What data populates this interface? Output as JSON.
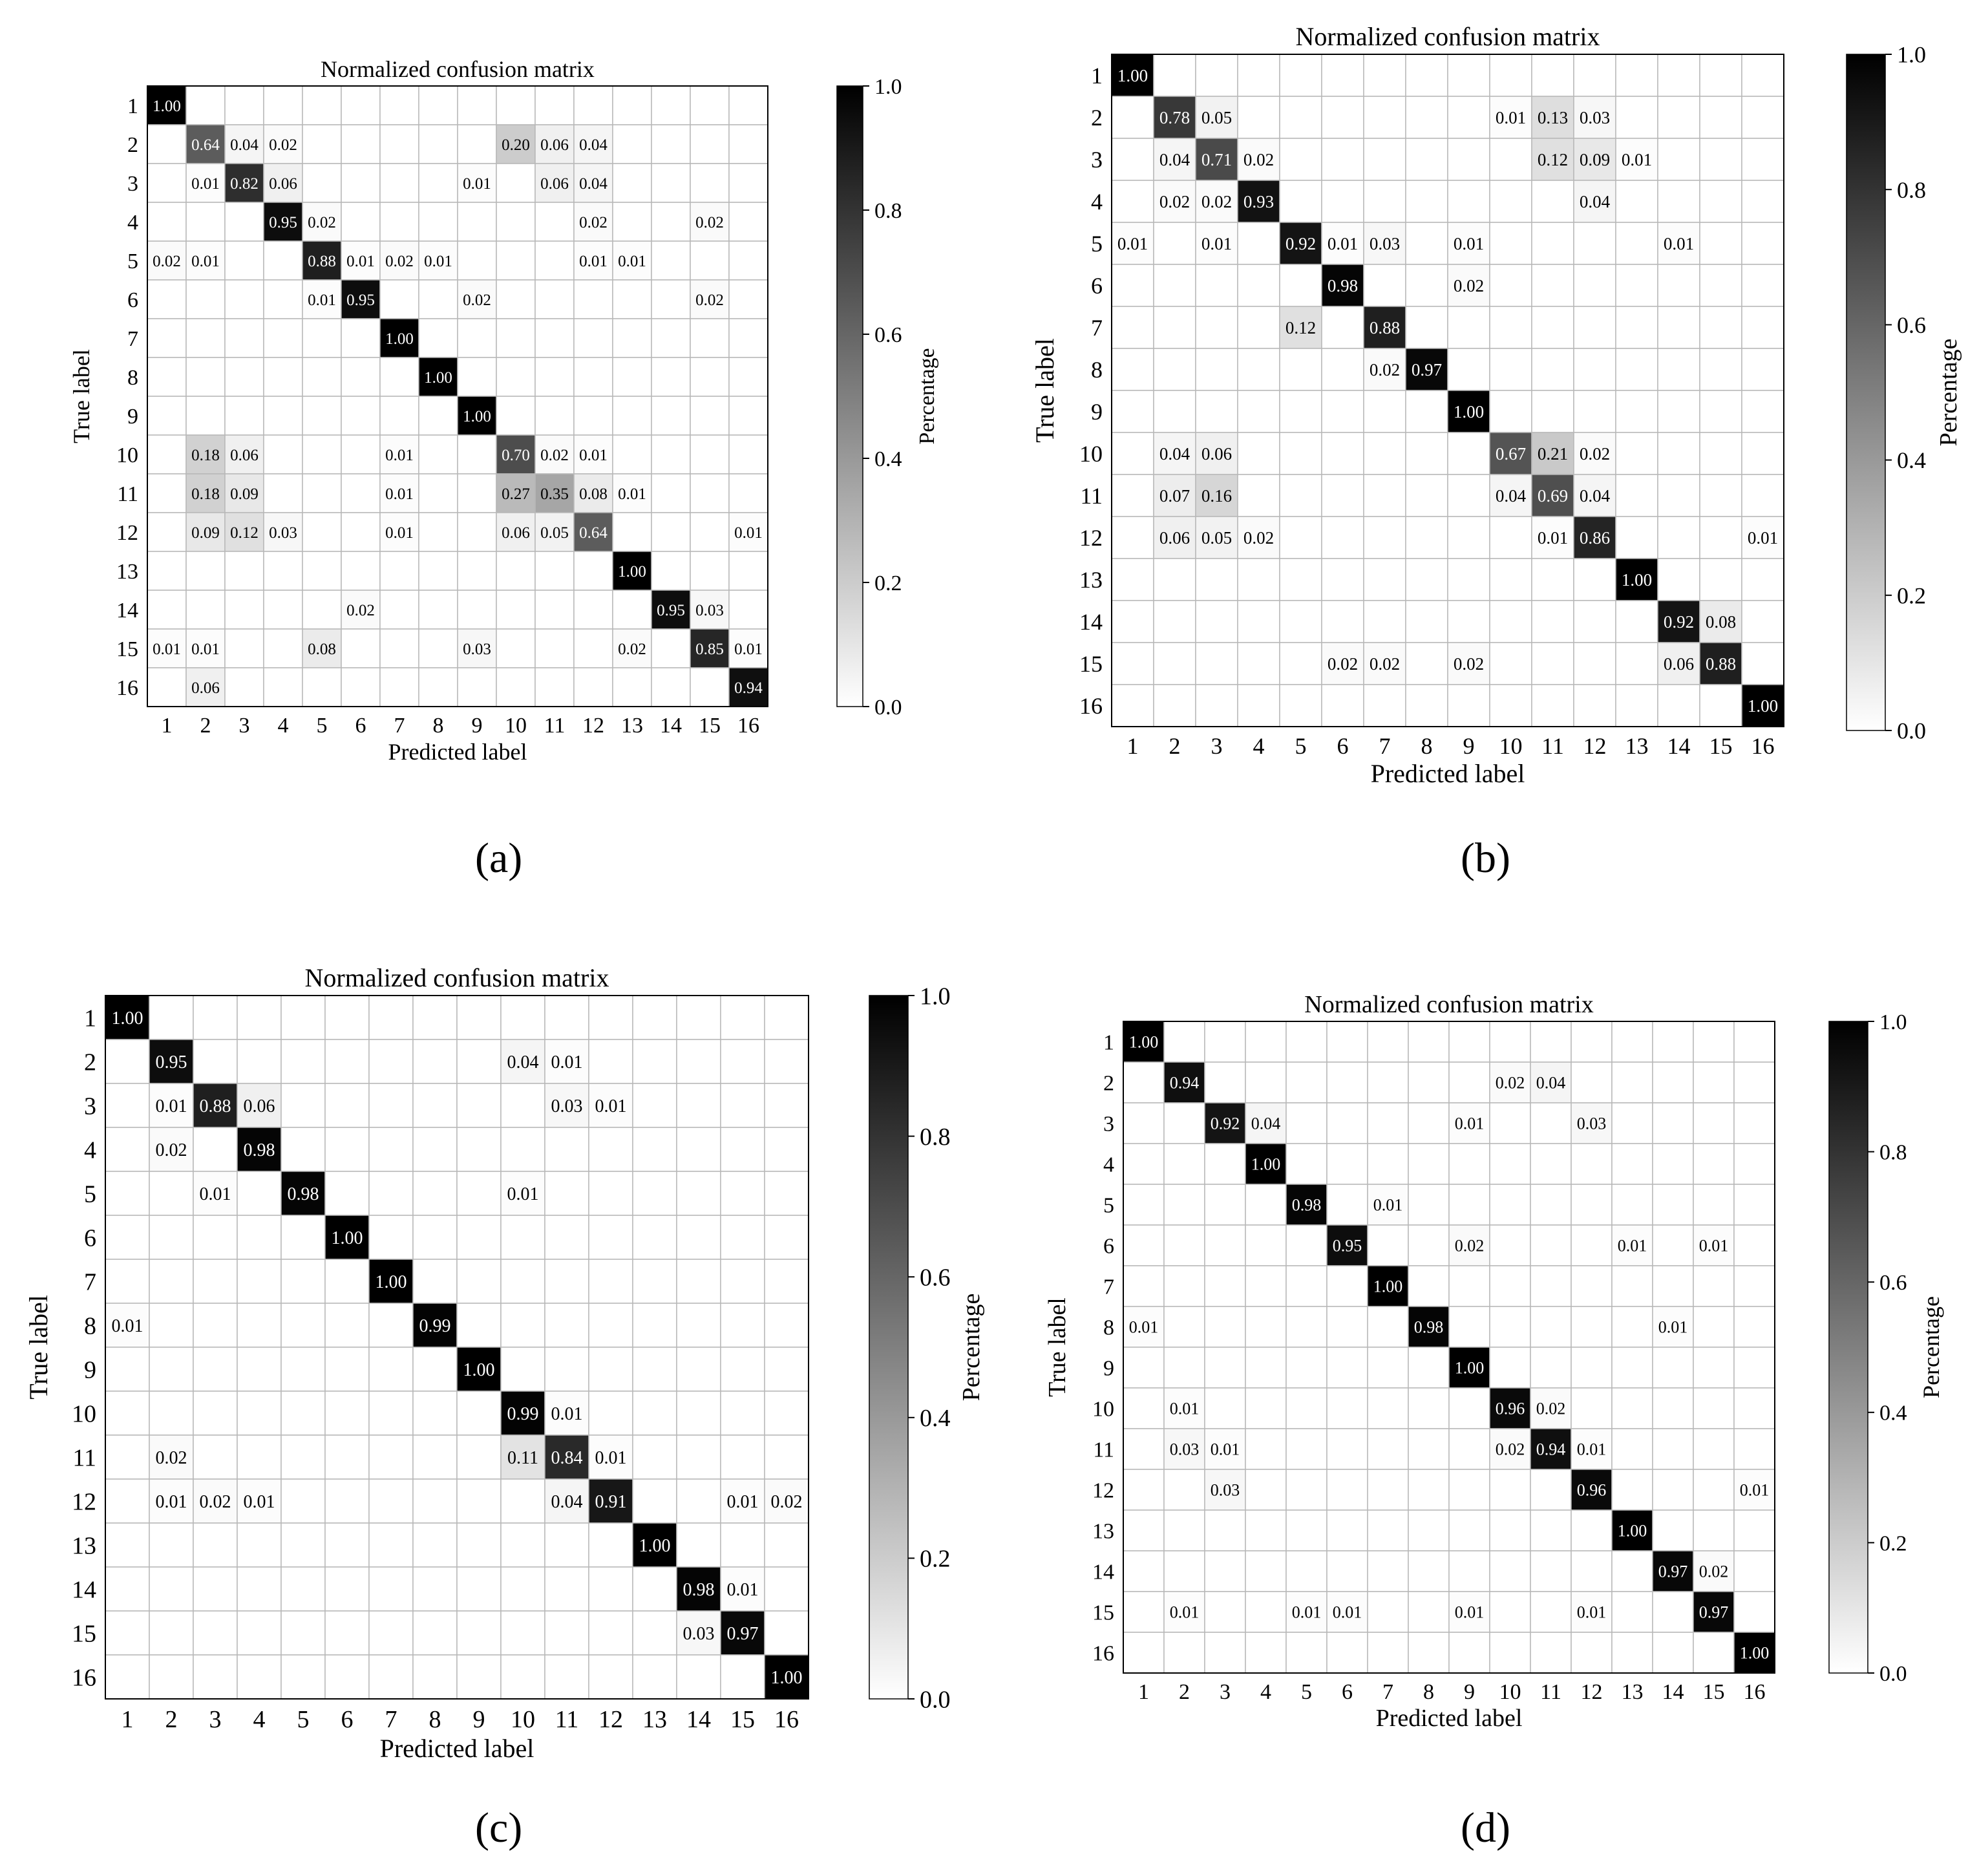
{
  "chart_data": [
    {
      "type": "heatmap",
      "panel": "(a)",
      "title": "Normalized confusion matrix",
      "xlabel": "Predicted label",
      "ylabel": "True label",
      "x_ticks": [
        "1",
        "2",
        "3",
        "4",
        "5",
        "6",
        "7",
        "8",
        "9",
        "10",
        "11",
        "12",
        "13",
        "14",
        "15",
        "16"
      ],
      "y_ticks": [
        "1",
        "2",
        "3",
        "4",
        "5",
        "6",
        "7",
        "8",
        "9",
        "10",
        "11",
        "12",
        "13",
        "14",
        "15",
        "16"
      ],
      "colorbar": {
        "label": "Percentage",
        "ticks": [
          "0.0",
          "0.2",
          "0.4",
          "0.6",
          "0.8",
          "1.0"
        ],
        "range": [
          0,
          1
        ]
      },
      "cmap": "white-to-black",
      "matrix": [
        [
          1.0,
          0,
          0,
          0,
          0,
          0,
          0,
          0,
          0,
          0,
          0,
          0,
          0,
          0,
          0,
          0
        ],
        [
          0,
          0.64,
          0.04,
          0.02,
          0,
          0,
          0,
          0,
          0,
          0.2,
          0.06,
          0.04,
          0,
          0,
          0,
          0
        ],
        [
          0,
          0.01,
          0.82,
          0.06,
          0,
          0,
          0,
          0,
          0.01,
          0,
          0.06,
          0.04,
          0,
          0,
          0,
          0
        ],
        [
          0,
          0,
          0,
          0.95,
          0.02,
          0,
          0,
          0,
          0,
          0,
          0,
          0.02,
          0,
          0,
          0.02,
          0
        ],
        [
          0.02,
          0.01,
          0,
          0,
          0.88,
          0.01,
          0.02,
          0.01,
          0,
          0,
          0,
          0.01,
          0.01,
          0,
          0,
          0
        ],
        [
          0,
          0,
          0,
          0,
          0.01,
          0.95,
          0,
          0,
          0.02,
          0,
          0,
          0,
          0,
          0,
          0.02,
          0
        ],
        [
          0,
          0,
          0,
          0,
          0,
          0,
          1.0,
          0,
          0,
          0,
          0,
          0,
          0,
          0,
          0,
          0
        ],
        [
          0,
          0,
          0,
          0,
          0,
          0,
          0,
          1.0,
          0,
          0,
          0,
          0,
          0,
          0,
          0,
          0
        ],
        [
          0,
          0,
          0,
          0,
          0,
          0,
          0,
          0,
          1.0,
          0,
          0,
          0,
          0,
          0,
          0,
          0
        ],
        [
          0,
          0.18,
          0.06,
          0,
          0,
          0,
          0.01,
          0,
          0,
          0.7,
          0.02,
          0.01,
          0,
          0,
          0,
          0
        ],
        [
          0,
          0.18,
          0.09,
          0,
          0,
          0,
          0.01,
          0,
          0,
          0.27,
          0.35,
          0.08,
          0.01,
          0,
          0,
          0
        ],
        [
          0,
          0.09,
          0.12,
          0.03,
          0,
          0,
          0.01,
          0,
          0,
          0.06,
          0.05,
          0.64,
          0,
          0,
          0,
          0.01
        ],
        [
          0,
          0,
          0,
          0,
          0,
          0,
          0,
          0,
          0,
          0,
          0,
          0,
          1.0,
          0,
          0,
          0
        ],
        [
          0,
          0,
          0,
          0,
          0,
          0.02,
          0,
          0,
          0,
          0,
          0,
          0,
          0,
          0.95,
          0.03,
          0
        ],
        [
          0.01,
          0.01,
          0,
          0,
          0.08,
          0,
          0,
          0,
          0.03,
          0,
          0,
          0,
          0.02,
          0,
          0.85,
          0.01
        ],
        [
          0,
          0.06,
          0,
          0,
          0,
          0,
          0,
          0,
          0,
          0,
          0,
          0,
          0,
          0,
          0,
          0.94
        ]
      ]
    },
    {
      "type": "heatmap",
      "panel": "(b)",
      "title": "Normalized confusion matrix",
      "xlabel": "Predicted label",
      "ylabel": "True label",
      "x_ticks": [
        "1",
        "2",
        "3",
        "4",
        "5",
        "6",
        "7",
        "8",
        "9",
        "10",
        "11",
        "12",
        "13",
        "14",
        "15",
        "16"
      ],
      "y_ticks": [
        "1",
        "2",
        "3",
        "4",
        "5",
        "6",
        "7",
        "8",
        "9",
        "10",
        "11",
        "12",
        "13",
        "14",
        "15",
        "16"
      ],
      "colorbar": {
        "label": "Percentage",
        "ticks": [
          "0.0",
          "0.2",
          "0.4",
          "0.6",
          "0.8",
          "1.0"
        ],
        "range": [
          0,
          1
        ]
      },
      "cmap": "white-to-black",
      "matrix": [
        [
          1.0,
          0,
          0,
          0,
          0,
          0,
          0,
          0,
          0,
          0,
          0,
          0,
          0,
          0,
          0,
          0
        ],
        [
          0,
          0.78,
          0.05,
          0,
          0,
          0,
          0,
          0,
          0,
          0.01,
          0.13,
          0.03,
          0,
          0,
          0,
          0
        ],
        [
          0,
          0.04,
          0.71,
          0.02,
          0,
          0,
          0,
          0,
          0,
          0,
          0.12,
          0.09,
          0.01,
          0,
          0,
          0
        ],
        [
          0,
          0.02,
          0.02,
          0.93,
          0,
          0,
          0,
          0,
          0,
          0,
          0,
          0.04,
          0,
          0,
          0,
          0
        ],
        [
          0.01,
          0,
          0.01,
          0,
          0.92,
          0.01,
          0.03,
          0,
          0.01,
          0,
          0,
          0,
          0,
          0.01,
          0,
          0
        ],
        [
          0,
          0,
          0,
          0,
          0,
          0.98,
          0,
          0,
          0.02,
          0,
          0,
          0,
          0,
          0,
          0,
          0
        ],
        [
          0,
          0,
          0,
          0,
          0.12,
          0,
          0.88,
          0,
          0,
          0,
          0,
          0,
          0,
          0,
          0,
          0
        ],
        [
          0,
          0,
          0,
          0,
          0,
          0,
          0.02,
          0.97,
          0,
          0,
          0,
          0,
          0,
          0,
          0,
          0
        ],
        [
          0,
          0,
          0,
          0,
          0,
          0,
          0,
          0,
          1.0,
          0,
          0,
          0,
          0,
          0,
          0,
          0
        ],
        [
          0,
          0.04,
          0.06,
          0,
          0,
          0,
          0,
          0,
          0,
          0.67,
          0.21,
          0.02,
          0,
          0,
          0,
          0
        ],
        [
          0,
          0.07,
          0.16,
          0,
          0,
          0,
          0,
          0,
          0,
          0.04,
          0.69,
          0.04,
          0,
          0,
          0,
          0
        ],
        [
          0,
          0.06,
          0.05,
          0.02,
          0,
          0,
          0,
          0,
          0,
          0,
          0.01,
          0.86,
          0,
          0,
          0,
          0.01
        ],
        [
          0,
          0,
          0,
          0,
          0,
          0,
          0,
          0,
          0,
          0,
          0,
          0,
          1.0,
          0,
          0,
          0
        ],
        [
          0,
          0,
          0,
          0,
          0,
          0,
          0,
          0,
          0,
          0,
          0,
          0,
          0,
          0.92,
          0.08,
          0
        ],
        [
          0,
          0,
          0,
          0,
          0,
          0.02,
          0.02,
          0,
          0.02,
          0,
          0,
          0,
          0,
          0.06,
          0.88,
          0
        ],
        [
          0,
          0,
          0,
          0,
          0,
          0,
          0,
          0,
          0,
          0,
          0,
          0,
          0,
          0,
          0,
          1.0
        ]
      ]
    },
    {
      "type": "heatmap",
      "panel": "(c)",
      "title": "Normalized confusion matrix",
      "xlabel": "Predicted label",
      "ylabel": "True label",
      "x_ticks": [
        "1",
        "2",
        "3",
        "4",
        "5",
        "6",
        "7",
        "8",
        "9",
        "10",
        "11",
        "12",
        "13",
        "14",
        "15",
        "16"
      ],
      "y_ticks": [
        "1",
        "2",
        "3",
        "4",
        "5",
        "6",
        "7",
        "8",
        "9",
        "10",
        "11",
        "12",
        "13",
        "14",
        "15",
        "16"
      ],
      "colorbar": {
        "label": "Percentage",
        "ticks": [
          "0.0",
          "0.2",
          "0.4",
          "0.6",
          "0.8",
          "1.0"
        ],
        "range": [
          0,
          1
        ]
      },
      "cmap": "white-to-black",
      "matrix": [
        [
          1.0,
          0,
          0,
          0,
          0,
          0,
          0,
          0,
          0,
          0,
          0,
          0,
          0,
          0,
          0,
          0
        ],
        [
          0,
          0.95,
          0,
          0,
          0,
          0,
          0,
          0,
          0,
          0.04,
          0.01,
          0,
          0,
          0,
          0,
          0
        ],
        [
          0,
          0.01,
          0.88,
          0.06,
          0,
          0,
          0,
          0,
          0,
          0,
          0.03,
          0.01,
          0,
          0,
          0,
          0
        ],
        [
          0,
          0.02,
          0,
          0.98,
          0,
          0,
          0,
          0,
          0,
          0,
          0,
          0,
          0,
          0,
          0,
          0
        ],
        [
          0,
          0,
          0.01,
          0,
          0.98,
          0,
          0,
          0,
          0,
          0.01,
          0,
          0,
          0,
          0,
          0,
          0
        ],
        [
          0,
          0,
          0,
          0,
          0,
          1.0,
          0,
          0,
          0,
          0,
          0,
          0,
          0,
          0,
          0,
          0
        ],
        [
          0,
          0,
          0,
          0,
          0,
          0,
          1.0,
          0,
          0,
          0,
          0,
          0,
          0,
          0,
          0,
          0
        ],
        [
          0.01,
          0,
          0,
          0,
          0,
          0,
          0,
          0.99,
          0,
          0,
          0,
          0,
          0,
          0,
          0,
          0
        ],
        [
          0,
          0,
          0,
          0,
          0,
          0,
          0,
          0,
          1.0,
          0,
          0,
          0,
          0,
          0,
          0,
          0
        ],
        [
          0,
          0,
          0,
          0,
          0,
          0,
          0,
          0,
          0,
          0.99,
          0.01,
          0,
          0,
          0,
          0,
          0
        ],
        [
          0,
          0.02,
          0,
          0,
          0,
          0,
          0,
          0,
          0,
          0.11,
          0.84,
          0.01,
          0,
          0,
          0,
          0
        ],
        [
          0,
          0.01,
          0.02,
          0.01,
          0,
          0,
          0,
          0,
          0,
          0,
          0.04,
          0.91,
          0,
          0,
          0.01,
          0.02
        ],
        [
          0,
          0,
          0,
          0,
          0,
          0,
          0,
          0,
          0,
          0,
          0,
          0,
          1.0,
          0,
          0,
          0
        ],
        [
          0,
          0,
          0,
          0,
          0,
          0,
          0,
          0,
          0,
          0,
          0,
          0,
          0,
          0.98,
          0.01,
          0
        ],
        [
          0,
          0,
          0,
          0,
          0,
          0,
          0,
          0,
          0,
          0,
          0,
          0,
          0,
          0.03,
          0.97,
          0
        ],
        [
          0,
          0,
          0,
          0,
          0,
          0,
          0,
          0,
          0,
          0,
          0,
          0,
          0,
          0,
          0,
          1.0
        ]
      ]
    },
    {
      "type": "heatmap",
      "panel": "(d)",
      "title": "Normalized confusion matrix",
      "xlabel": "Predicted label",
      "ylabel": "True label",
      "x_ticks": [
        "1",
        "2",
        "3",
        "4",
        "5",
        "6",
        "7",
        "8",
        "9",
        "10",
        "11",
        "12",
        "13",
        "14",
        "15",
        "16"
      ],
      "y_ticks": [
        "1",
        "2",
        "3",
        "4",
        "5",
        "6",
        "7",
        "8",
        "9",
        "10",
        "11",
        "12",
        "13",
        "14",
        "15",
        "16"
      ],
      "colorbar": {
        "label": "Percentage",
        "ticks": [
          "0.0",
          "0.2",
          "0.4",
          "0.6",
          "0.8",
          "1.0"
        ],
        "range": [
          0,
          1
        ]
      },
      "cmap": "white-to-black",
      "matrix": [
        [
          1.0,
          0,
          0,
          0,
          0,
          0,
          0,
          0,
          0,
          0,
          0,
          0,
          0,
          0,
          0,
          0
        ],
        [
          0,
          0.94,
          0,
          0,
          0,
          0,
          0,
          0,
          0,
          0.02,
          0.04,
          0,
          0,
          0,
          0,
          0
        ],
        [
          0,
          0,
          0.92,
          0.04,
          0,
          0,
          0,
          0,
          0.01,
          0,
          0,
          0.03,
          0,
          0,
          0,
          0
        ],
        [
          0,
          0,
          0,
          1.0,
          0,
          0,
          0,
          0,
          0,
          0,
          0,
          0,
          0,
          0,
          0,
          0
        ],
        [
          0,
          0,
          0,
          0,
          0.98,
          0,
          0.01,
          0,
          0,
          0,
          0,
          0,
          0,
          0,
          0,
          0
        ],
        [
          0,
          0,
          0,
          0,
          0,
          0.95,
          0,
          0,
          0.02,
          0,
          0,
          0,
          0.01,
          0,
          0.01,
          0
        ],
        [
          0,
          0,
          0,
          0,
          0,
          0,
          1.0,
          0,
          0,
          0,
          0,
          0,
          0,
          0,
          0,
          0
        ],
        [
          0.01,
          0,
          0,
          0,
          0,
          0,
          0,
          0.98,
          0,
          0,
          0,
          0,
          0,
          0.01,
          0,
          0
        ],
        [
          0,
          0,
          0,
          0,
          0,
          0,
          0,
          0,
          1.0,
          0,
          0,
          0,
          0,
          0,
          0,
          0
        ],
        [
          0,
          0.01,
          0,
          0,
          0,
          0,
          0,
          0,
          0,
          0.96,
          0.02,
          0,
          0,
          0,
          0,
          0
        ],
        [
          0,
          0.03,
          0.01,
          0,
          0,
          0,
          0,
          0,
          0,
          0.02,
          0.94,
          0.01,
          0,
          0,
          0,
          0
        ],
        [
          0,
          0,
          0.03,
          0,
          0,
          0,
          0,
          0,
          0,
          0,
          0,
          0.96,
          0,
          0,
          0,
          0.01
        ],
        [
          0,
          0,
          0,
          0,
          0,
          0,
          0,
          0,
          0,
          0,
          0,
          0,
          1.0,
          0,
          0,
          0
        ],
        [
          0,
          0,
          0,
          0,
          0,
          0,
          0,
          0,
          0,
          0,
          0,
          0,
          0,
          0.97,
          0.02,
          0
        ],
        [
          0,
          0.01,
          0,
          0,
          0.01,
          0.01,
          0,
          0,
          0.01,
          0,
          0,
          0.01,
          0,
          0,
          0.97,
          0
        ],
        [
          0,
          0,
          0,
          0,
          0,
          0,
          0,
          0,
          0,
          0,
          0,
          0,
          0,
          0,
          0,
          1.0
        ]
      ]
    }
  ]
}
